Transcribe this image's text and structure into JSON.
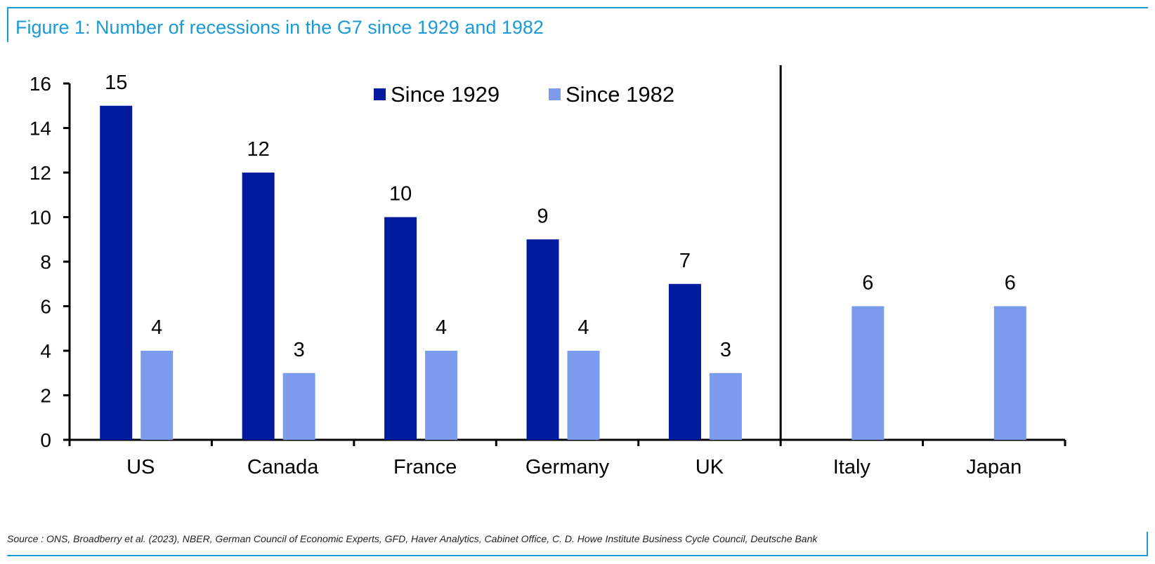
{
  "title": "Figure 1: Number of recessions in the G7 since 1929 and 1982",
  "source": "Source : ONS, Broadberry et al. (2023), NBER, German Council of Economic Experts, GFD, Haver Analytics, Cabinet Office, C. D. Howe Institute Business Cycle Council, Deutsche Bank",
  "colors": {
    "accent": "#1a9ad6",
    "since_1929": "#001b9e",
    "since_1982": "#7b9cec"
  },
  "chart_data": {
    "type": "bar",
    "categories": [
      "US",
      "Canada",
      "France",
      "Germany",
      "UK",
      "Italy",
      "Japan"
    ],
    "series": [
      {
        "name": "Since 1929",
        "values": [
          15,
          12,
          10,
          9,
          7,
          null,
          null
        ]
      },
      {
        "name": "Since 1982",
        "values": [
          4,
          3,
          4,
          4,
          3,
          6,
          6
        ]
      }
    ],
    "yticks": [
      "0",
      "2",
      "4",
      "6",
      "8",
      "10",
      "12",
      "14",
      "16"
    ],
    "ylim": [
      0,
      16
    ],
    "grid": false,
    "legend_position": "top-center",
    "divider_after_category": "UK"
  }
}
